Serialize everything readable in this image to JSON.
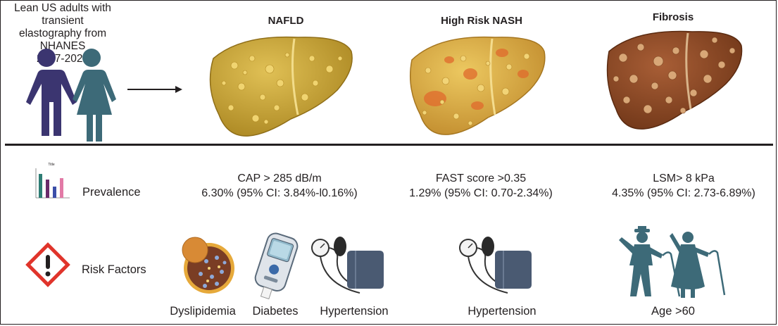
{
  "intro": {
    "line1": "Lean US adults with transient",
    "line2": "elastography from NHANES",
    "line3": "2017-2020"
  },
  "stages": [
    {
      "title": "NAFLD"
    },
    {
      "title": "High Risk NASH"
    },
    {
      "title": "Fibrosis"
    }
  ],
  "prevalence": {
    "label": "Prevalence",
    "mini_chart_title": "Title",
    "items": [
      {
        "criterion": "CAP > 285 dB/m",
        "value": "6.30% (95% CI: 3.84%-l0.16%)"
      },
      {
        "criterion": "FAST score >0.35",
        "value": "1.29% (95% CI: 0.70-2.34%)"
      },
      {
        "criterion": "LSM> 8 kPa",
        "value": "4.35% (95% CI: 2.73-6.89%)"
      }
    ]
  },
  "risk_factors": {
    "label": "Risk Factors",
    "items": [
      {
        "label": "Dyslipidemia",
        "icon": "lipoprotein-icon"
      },
      {
        "label": "Diabetes",
        "icon": "glucose-meter-icon"
      },
      {
        "label": "Hypertension",
        "icon": "blood-pressure-cuff-icon"
      },
      {
        "label": "Hypertension",
        "icon": "blood-pressure-cuff-icon"
      },
      {
        "label": "Age >60",
        "icon": "elderly-couple-icon"
      }
    ]
  },
  "colors": {
    "male_figure": "#3b3570",
    "female_figure": "#3d6a78",
    "nafld_liver": "#c9a83a",
    "nash_liver": "#d6a03a",
    "fibrosis_liver": "#8a4a2a",
    "warning_red": "#e0342b",
    "elderly_figures": "#3d6a78"
  }
}
